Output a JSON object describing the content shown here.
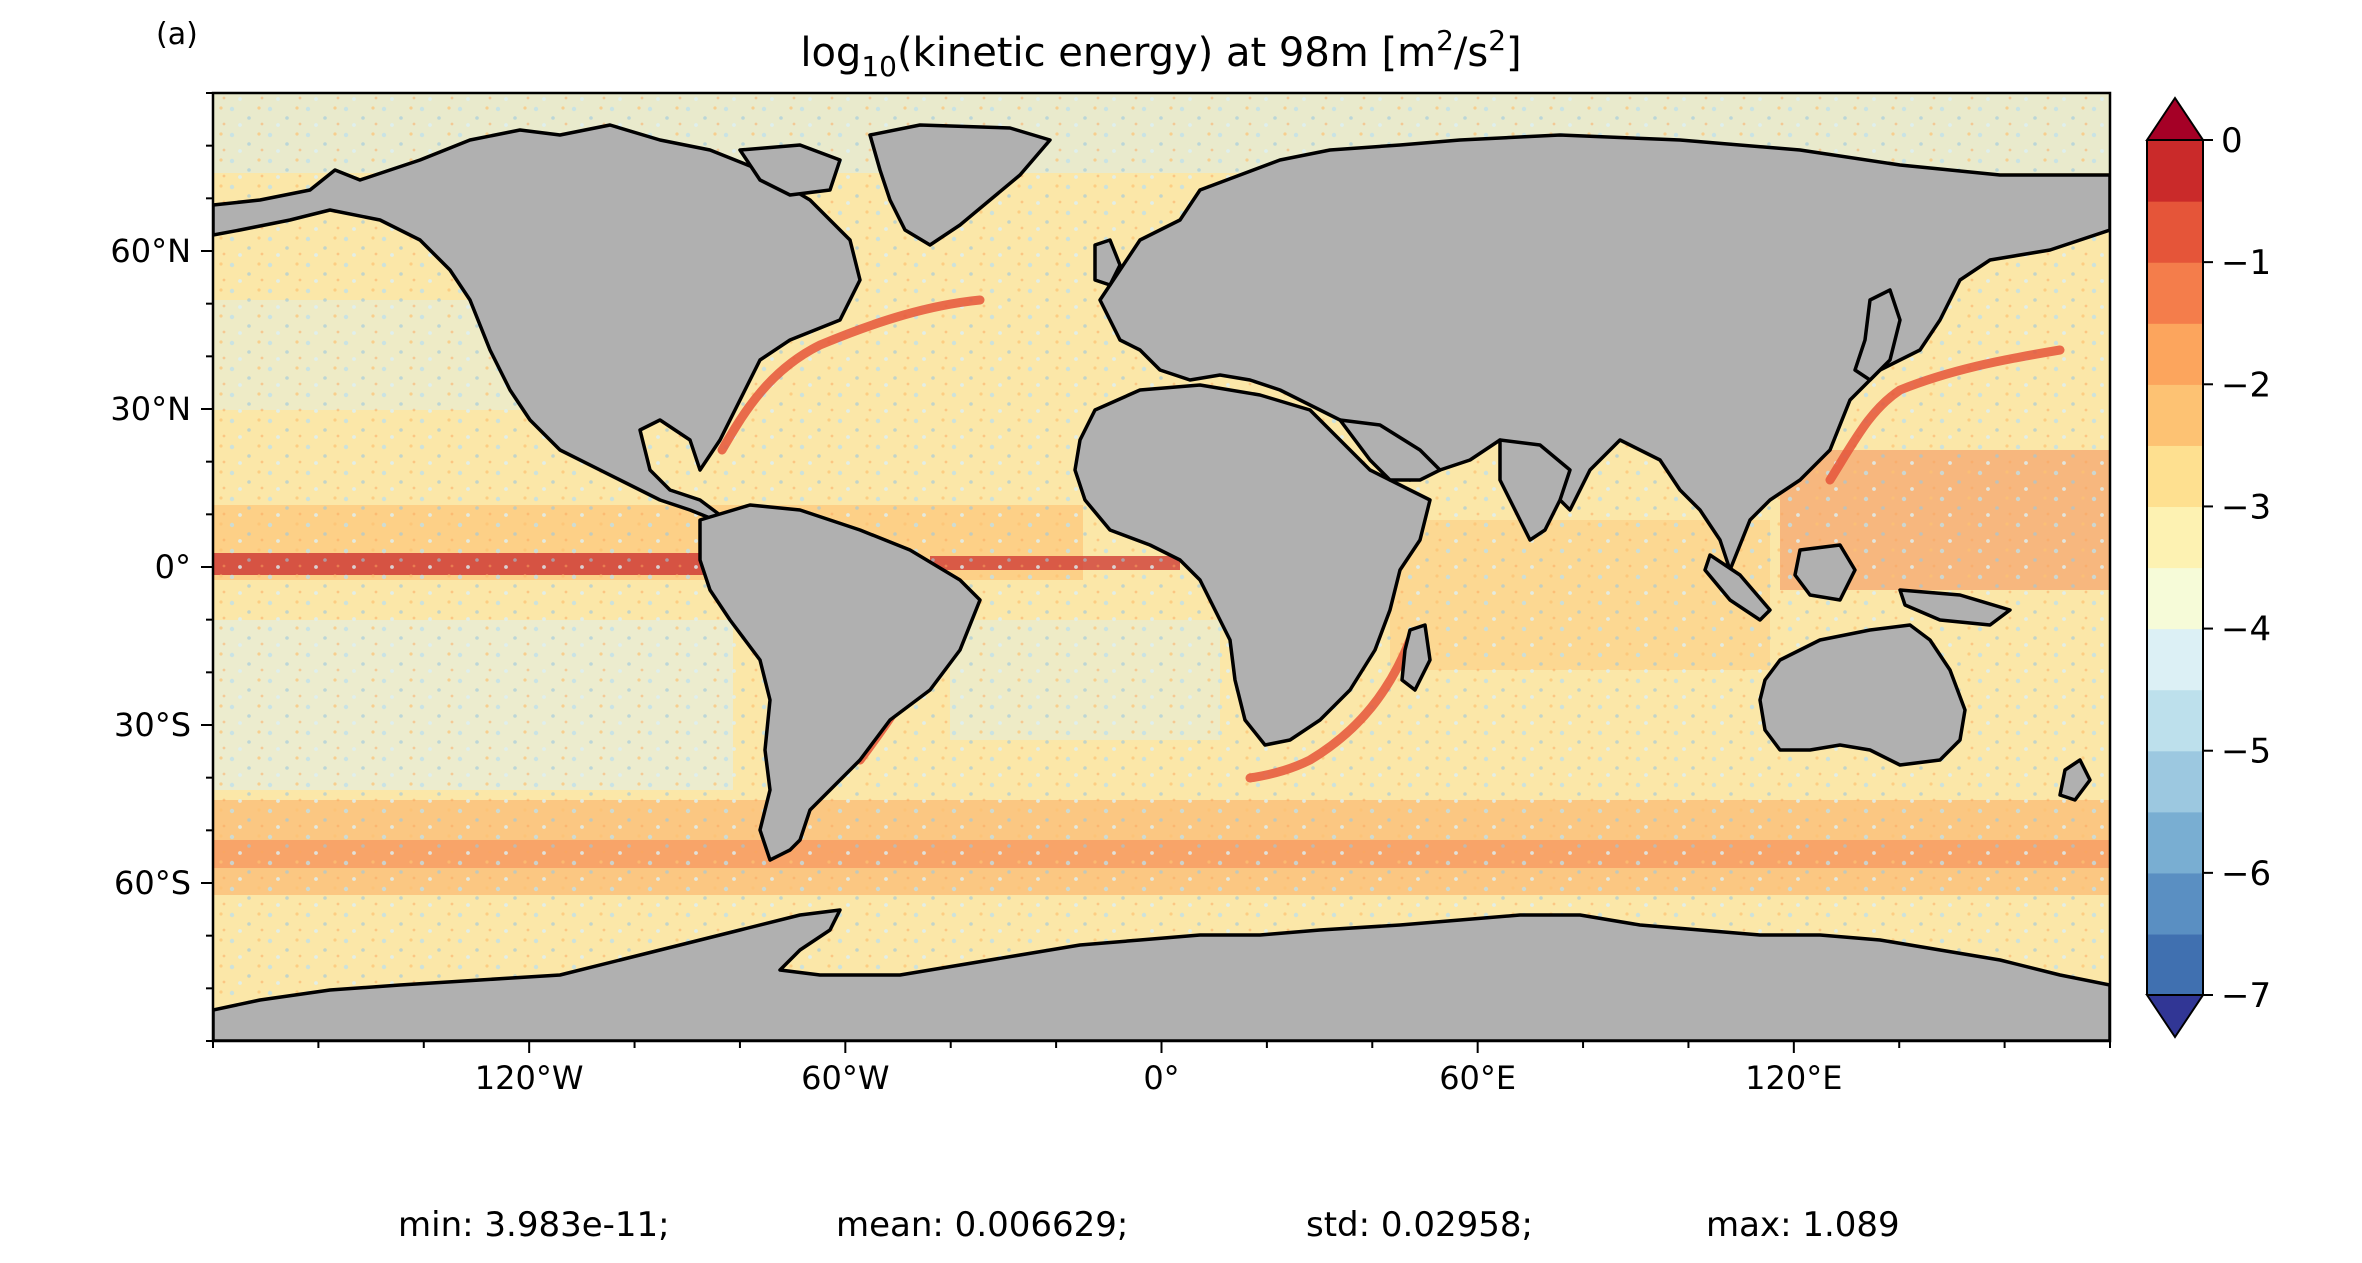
{
  "panel_label": "(a)",
  "title": {
    "prefix": "log",
    "subscript": "10",
    "middle": "(kinetic energy) at 98m [m",
    "sup1": "2",
    "slash": "/s",
    "sup2": "2",
    "suffix": "]"
  },
  "map": {
    "ocean_color": "#fbe7a8",
    "land_color": "#b0b0b0",
    "coast_color": "#000000",
    "ice_color": "#ffffff"
  },
  "chart_data": {
    "type": "heatmap",
    "projection": "plate-carree",
    "variable": "log10(kinetic energy)",
    "depth": "98m",
    "units": "m^2/s^2",
    "lon_range": [
      -180,
      180
    ],
    "lat_range": [
      -90,
      90
    ],
    "x_ticks": [
      -120,
      -60,
      0,
      60,
      120
    ],
    "x_tick_labels": [
      "120°W",
      "60°W",
      "0°",
      "60°E",
      "120°E"
    ],
    "y_ticks": [
      60,
      30,
      0,
      -30,
      -60
    ],
    "y_tick_labels": [
      "60°N",
      "30°N",
      "0°",
      "30°S",
      "60°S"
    ],
    "colorbar": {
      "min": -7,
      "max": 0,
      "step": 0.5,
      "ticks": [
        0,
        -1,
        -2,
        -3,
        -4,
        -5,
        -6,
        -7
      ],
      "tick_labels": [
        "0",
        "−1",
        "−2",
        "−3",
        "−4",
        "−5",
        "−6",
        "−7"
      ],
      "extend": "both",
      "colors": [
        "#313695",
        "#4070b0",
        "#5a8fc2",
        "#79aed2",
        "#9cc8e0",
        "#bde0ec",
        "#dcf0f5",
        "#f6fbd8",
        "#fdf2b2",
        "#fee090",
        "#fdc273",
        "#fca55d",
        "#f47d4b",
        "#e55539",
        "#ca2a2a",
        "#a50026"
      ]
    },
    "stats": [
      {
        "label": "min: 3.983e-11;"
      },
      {
        "label": "mean: 0.006629;"
      },
      {
        "label": "std: 0.02958;"
      },
      {
        "label": "max: 1.089"
      }
    ]
  }
}
